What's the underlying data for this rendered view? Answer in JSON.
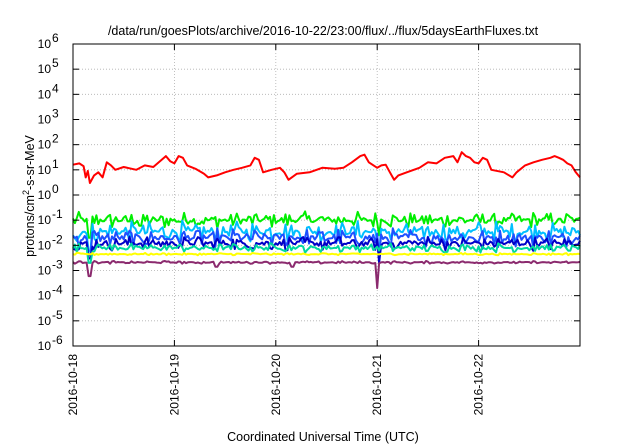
{
  "chart_data": {
    "type": "line",
    "title": "/data/run/goesPlots/archive/2016-10-22/23:00/flux/../flux/5daysEarthFluxes.txt",
    "xlabel": "Coordinated Universal Time (UTC)",
    "ylabel": "protons/cm2-s-sr-MeV",
    "ylabel_parts": {
      "pre": "protons/cm",
      "sup": "2",
      "post": "-s-sr-MeV"
    },
    "yscale": "log",
    "ylim": [
      1e-06,
      1000000.0
    ],
    "xlim": [
      "2016-10-18T00:00",
      "2016-10-23T00:00"
    ],
    "grid": true,
    "x_ticks": [
      {
        "x": "2016-10-18T00:00",
        "label": "2016-10-18"
      },
      {
        "x": "2016-10-19T00:00",
        "label": "2016-10-19"
      },
      {
        "x": "2016-10-20T00:00",
        "label": "2016-10-20"
      },
      {
        "x": "2016-10-21T00:00",
        "label": "2016-10-21"
      },
      {
        "x": "2016-10-22T00:00",
        "label": "2016-10-22"
      }
    ],
    "y_ticks": [
      {
        "value": 1e-06,
        "base": "10",
        "exp": "-6"
      },
      {
        "value": 1e-05,
        "base": "10",
        "exp": "-5"
      },
      {
        "value": 0.0001,
        "base": "10",
        "exp": "-4"
      },
      {
        "value": 0.001,
        "base": "10",
        "exp": "-3"
      },
      {
        "value": 0.01,
        "base": "10",
        "exp": "-2"
      },
      {
        "value": 0.1,
        "base": "10",
        "exp": "-1"
      },
      {
        "value": 1.0,
        "base": "10",
        "exp": "0"
      },
      {
        "value": 10.0,
        "base": "10",
        "exp": "1"
      },
      {
        "value": 100.0,
        "base": "10",
        "exp": "2"
      },
      {
        "value": 1000.0,
        "base": "10",
        "exp": "3"
      },
      {
        "value": 10000.0,
        "base": "10",
        "exp": "4"
      },
      {
        "value": 100000.0,
        "base": "10",
        "exp": "5"
      },
      {
        "value": 1000000.0,
        "base": "10",
        "exp": "6"
      }
    ],
    "series": [
      {
        "color": "#ff0000",
        "width": 2,
        "points": [
          [
            "2016-10-18T00:00",
            16
          ],
          [
            "2016-10-18T01:30",
            18
          ],
          [
            "2016-10-18T02:30",
            14
          ],
          [
            "2016-10-18T03:00",
            5
          ],
          [
            "2016-10-18T03:30",
            9
          ],
          [
            "2016-10-18T04:00",
            3
          ],
          [
            "2016-10-18T05:00",
            6
          ],
          [
            "2016-10-18T06:00",
            8
          ],
          [
            "2016-10-18T07:00",
            5
          ],
          [
            "2016-10-18T08:00",
            20
          ],
          [
            "2016-10-18T09:00",
            15
          ],
          [
            "2016-10-18T10:00",
            10
          ],
          [
            "2016-10-18T12:00",
            13
          ],
          [
            "2016-10-18T15:00",
            10
          ],
          [
            "2016-10-18T17:00",
            15
          ],
          [
            "2016-10-18T19:00",
            13
          ],
          [
            "2016-10-18T21:00",
            25
          ],
          [
            "2016-10-18T22:00",
            35
          ],
          [
            "2016-10-18T23:00",
            22
          ],
          [
            "2016-10-19T00:00",
            18
          ],
          [
            "2016-10-19T01:00",
            35
          ],
          [
            "2016-10-19T02:00",
            30
          ],
          [
            "2016-10-19T03:00",
            15
          ],
          [
            "2016-10-19T05:00",
            11
          ],
          [
            "2016-10-19T07:00",
            7
          ],
          [
            "2016-10-19T08:00",
            5
          ],
          [
            "2016-10-19T10:00",
            6
          ],
          [
            "2016-10-19T12:00",
            8
          ],
          [
            "2016-10-19T14:00",
            10
          ],
          [
            "2016-10-19T16:00",
            12
          ],
          [
            "2016-10-19T18:00",
            15
          ],
          [
            "2016-10-19T19:00",
            30
          ],
          [
            "2016-10-19T20:00",
            25
          ],
          [
            "2016-10-19T21:00",
            8
          ],
          [
            "2016-10-19T23:00",
            10
          ],
          [
            "2016-10-20T01:00",
            12
          ],
          [
            "2016-10-20T02:00",
            8
          ],
          [
            "2016-10-20T03:00",
            4
          ],
          [
            "2016-10-20T05:00",
            7
          ],
          [
            "2016-10-20T08:00",
            8
          ],
          [
            "2016-10-20T11:00",
            12
          ],
          [
            "2016-10-20T14:00",
            11
          ],
          [
            "2016-10-20T16:00",
            12
          ],
          [
            "2016-10-20T18:00",
            20
          ],
          [
            "2016-10-20T20:00",
            35
          ],
          [
            "2016-10-20T21:00",
            40
          ],
          [
            "2016-10-20T22:00",
            20
          ],
          [
            "2016-10-21T00:00",
            12
          ],
          [
            "2016-10-21T01:00",
            15
          ],
          [
            "2016-10-21T02:00",
            16
          ],
          [
            "2016-10-21T03:00",
            8
          ],
          [
            "2016-10-21T04:00",
            4
          ],
          [
            "2016-10-21T05:00",
            6
          ],
          [
            "2016-10-21T07:00",
            8
          ],
          [
            "2016-10-21T10:00",
            12
          ],
          [
            "2016-10-21T12:00",
            20
          ],
          [
            "2016-10-21T14:00",
            18
          ],
          [
            "2016-10-21T16:00",
            30
          ],
          [
            "2016-10-21T18:00",
            35
          ],
          [
            "2016-10-21T19:00",
            20
          ],
          [
            "2016-10-21T20:00",
            50
          ],
          [
            "2016-10-21T21:00",
            35
          ],
          [
            "2016-10-21T22:00",
            30
          ],
          [
            "2016-10-21T23:00",
            20
          ],
          [
            "2016-10-22T00:00",
            18
          ],
          [
            "2016-10-22T01:00",
            30
          ],
          [
            "2016-10-22T02:00",
            25
          ],
          [
            "2016-10-22T03:00",
            10
          ],
          [
            "2016-10-22T06:00",
            8
          ],
          [
            "2016-10-22T08:00",
            5
          ],
          [
            "2016-10-22T09:00",
            8
          ],
          [
            "2016-10-22T11:00",
            15
          ],
          [
            "2016-10-22T13:00",
            20
          ],
          [
            "2016-10-22T15:00",
            25
          ],
          [
            "2016-10-22T17:00",
            30
          ],
          [
            "2016-10-22T18:00",
            35
          ],
          [
            "2016-10-22T19:00",
            30
          ],
          [
            "2016-10-22T20:00",
            25
          ],
          [
            "2016-10-22T21:00",
            18
          ],
          [
            "2016-10-22T22:00",
            15
          ],
          [
            "2016-10-22T23:00",
            8
          ],
          [
            "2016-10-23T00:00",
            5
          ]
        ]
      },
      {
        "color": "#00ee00",
        "width": 2,
        "level": 0.1,
        "spread": 0.35,
        "dips": [
          [
            "2016-10-18T04:00",
            0.02
          ],
          [
            "2016-10-21T00:30",
            0.025
          ],
          [
            "2016-10-18T16:00",
            0.06
          ]
        ]
      },
      {
        "color": "#00bfff",
        "width": 2,
        "level": 0.035,
        "spread": 0.45,
        "dips": [
          [
            "2016-10-18T04:00",
            0.006
          ],
          [
            "2016-10-21T00:30",
            0.004
          ]
        ]
      },
      {
        "color": "#1e50ff",
        "width": 2,
        "level": 0.02,
        "spread": 0.4,
        "dips": [
          [
            "2016-10-18T04:00",
            0.004
          ],
          [
            "2016-10-21T00:30",
            0.003
          ]
        ]
      },
      {
        "color": "#0000c8",
        "width": 2,
        "level": 0.012,
        "spread": 0.3,
        "dips": [
          [
            "2016-10-18T04:00",
            0.003
          ],
          [
            "2016-10-21T00:30",
            0.002
          ]
        ]
      },
      {
        "color": "#00d8a0",
        "width": 2,
        "level": 0.008,
        "spread": 0.2,
        "dips": [
          [
            "2016-10-18T04:00",
            0.002
          ]
        ]
      },
      {
        "color": "#ffff00",
        "width": 2,
        "level": 0.0045,
        "spread": 0.05,
        "dips": []
      },
      {
        "color": "#8b2a6e",
        "width": 2,
        "level": 0.0021,
        "spread": 0.06,
        "dips": [
          [
            "2016-10-18T04:00",
            0.0006
          ],
          [
            "2016-10-21T00:00",
            0.0002
          ],
          [
            "2016-10-19T10:00",
            0.0014
          ],
          [
            "2016-10-20T04:00",
            0.0014
          ]
        ]
      }
    ]
  }
}
